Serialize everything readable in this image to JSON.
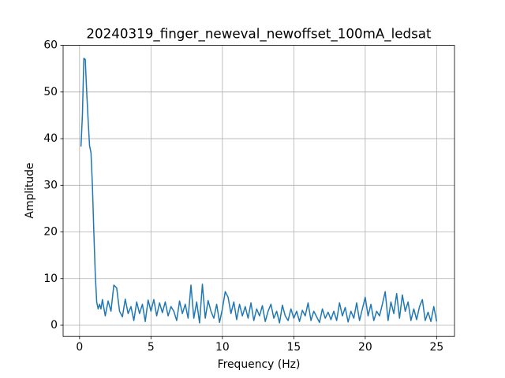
{
  "chart_data": {
    "type": "line",
    "title": "20240319_finger_neweval_newoffset_100mA_ledsat",
    "x_label": "Frequency (Hz)",
    "y_label": "Amplitude",
    "x": [
      0.1,
      0.2,
      0.3,
      0.4,
      0.5,
      0.6,
      0.7,
      0.8,
      0.9,
      1.0,
      1.1,
      1.2,
      1.3,
      1.4,
      1.5,
      1.6,
      1.8,
      2.0,
      2.2,
      2.4,
      2.6,
      2.8,
      3.0,
      3.2,
      3.4,
      3.6,
      3.8,
      4.0,
      4.2,
      4.4,
      4.6,
      4.8,
      5.0,
      5.2,
      5.4,
      5.6,
      5.8,
      6.0,
      6.2,
      6.4,
      6.6,
      6.8,
      7.0,
      7.2,
      7.4,
      7.6,
      7.8,
      8.0,
      8.2,
      8.4,
      8.6,
      8.8,
      9.0,
      9.2,
      9.4,
      9.6,
      9.8,
      10.0,
      10.2,
      10.4,
      10.6,
      10.8,
      11.0,
      11.2,
      11.4,
      11.6,
      11.8,
      12.0,
      12.2,
      12.4,
      12.6,
      12.8,
      13.0,
      13.2,
      13.4,
      13.6,
      13.8,
      14.0,
      14.2,
      14.4,
      14.6,
      14.8,
      15.0,
      15.2,
      15.4,
      15.6,
      15.8,
      16.0,
      16.2,
      16.4,
      16.6,
      16.8,
      17.0,
      17.2,
      17.4,
      17.6,
      17.8,
      18.0,
      18.2,
      18.4,
      18.6,
      18.8,
      19.0,
      19.2,
      19.4,
      19.6,
      19.8,
      20.0,
      20.2,
      20.4,
      20.6,
      20.8,
      21.0,
      21.2,
      21.4,
      21.6,
      21.8,
      22.0,
      22.2,
      22.4,
      22.6,
      22.8,
      23.0,
      23.2,
      23.4,
      23.6,
      23.8,
      24.0,
      24.2,
      24.4,
      24.6,
      24.8,
      25.0
    ],
    "series": [
      {
        "color": "#1f77b4",
        "values": [
          38.3,
          45,
          57.2,
          57,
          50,
          44,
          38.5,
          37,
          30,
          20,
          11,
          5,
          3.5,
          4.5,
          3.5,
          5.5,
          2,
          5.2,
          3,
          8.6,
          8,
          3,
          1.8,
          5.6,
          2.5,
          4,
          1,
          5,
          2.5,
          4.5,
          0.8,
          5.4,
          3,
          5.5,
          2,
          4.8,
          2.7,
          5,
          2,
          4,
          3,
          1,
          5.2,
          2.5,
          4.5,
          1.5,
          8.6,
          1.5,
          5,
          0.5,
          8.8,
          1.5,
          5.3,
          3,
          1.5,
          4.5,
          0.6,
          3.5,
          7.2,
          6,
          2.5,
          5,
          1.2,
          4.5,
          2,
          4,
          1.5,
          4.8,
          1,
          3.5,
          2,
          4.2,
          0.8,
          3,
          4.5,
          1.5,
          3,
          0.5,
          4.3,
          2,
          1,
          3.5,
          1.5,
          3,
          0.8,
          3.2,
          2,
          4.8,
          1,
          3,
          1.8,
          0.6,
          3.5,
          1.5,
          2.8,
          1.2,
          3,
          1,
          4.8,
          2,
          3.8,
          0.7,
          3,
          1.5,
          4.8,
          1,
          3.5,
          6,
          2,
          4.5,
          1,
          3,
          2,
          4.5,
          7.2,
          1,
          5,
          2.5,
          6.8,
          1.5,
          6.5,
          3,
          5,
          1,
          3.5,
          1.2,
          4,
          5.5,
          1,
          2.8,
          0.8,
          4,
          0.8
        ]
      }
    ],
    "xlim": [
      -1.15,
      26.25
    ],
    "ylim": [
      -2.4,
      60
    ],
    "xticks": [
      0,
      5,
      10,
      15,
      20,
      25
    ],
    "yticks": [
      0,
      10,
      20,
      30,
      40,
      50,
      60
    ],
    "grid": true
  }
}
